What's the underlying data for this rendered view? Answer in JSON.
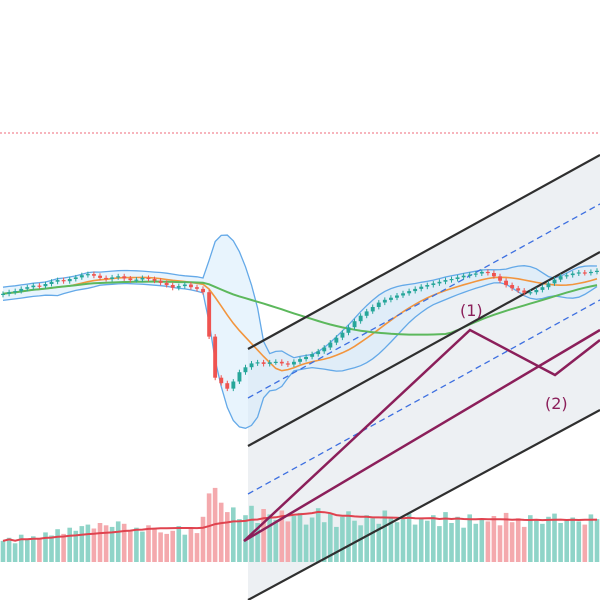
{
  "chart_data": {
    "type": "candlestick",
    "title": "",
    "xlabel": "",
    "ylabel": "",
    "ylim": [
      62,
      118
    ],
    "x": [
      0,
      1,
      2,
      3,
      4,
      5,
      6,
      7,
      8,
      9,
      10,
      11,
      12,
      13,
      14,
      15,
      16,
      17,
      18,
      19,
      20,
      21,
      22,
      23,
      24,
      25,
      26,
      27,
      28,
      29,
      30,
      31,
      32,
      33,
      34,
      35,
      36,
      37,
      38,
      39,
      40,
      41,
      42,
      43,
      44,
      45,
      46,
      47,
      48,
      49,
      50,
      51,
      52,
      53,
      54,
      55,
      56,
      57,
      58,
      59,
      60,
      61,
      62,
      63,
      64,
      65,
      66,
      67,
      68,
      69,
      70,
      71,
      72,
      73,
      74,
      75,
      76,
      77,
      78,
      79,
      80,
      81,
      82,
      83,
      84,
      85,
      86,
      87,
      88,
      89,
      90,
      91,
      92,
      93,
      94,
      95,
      96,
      97,
      98
    ],
    "series": [
      {
        "open": [
          88.1,
          88.3,
          88.6,
          88.8,
          89.2,
          89.5,
          89.8,
          89.7,
          90.1,
          90.5,
          90.8,
          90.6,
          91.0,
          91.3,
          91.7,
          91.9,
          91.6,
          91.2,
          91.0,
          91.3,
          91.5,
          91.1,
          90.8,
          90.9,
          91.2,
          91.0,
          90.7,
          90.3,
          89.9,
          89.4,
          89.7,
          90.0,
          89.5,
          89.2,
          88.6,
          80.5,
          73.0,
          72.0,
          71.0,
          72.3,
          74.0,
          74.9,
          75.6,
          75.8,
          75.5,
          75.8,
          75.9,
          75.6,
          75.4,
          75.9,
          76.4,
          76.8,
          77.3,
          77.8,
          78.5,
          79.4,
          80.3,
          81.2,
          82.2,
          83.3,
          84.3,
          85.1,
          85.9,
          86.7,
          87.2,
          87.6,
          88.0,
          88.4,
          88.8,
          89.2,
          89.6,
          89.9,
          90.2,
          90.5,
          90.8,
          91.0,
          91.3,
          91.6,
          91.8,
          92.0,
          92.3,
          92.1,
          91.5,
          90.7,
          89.9,
          89.3,
          88.9,
          88.5,
          88.6,
          89.0,
          89.5,
          90.2,
          90.9,
          91.5,
          91.7,
          92.0,
          92.2,
          92.1,
          92.3
        ]
      },
      {
        "close": [
          88.3,
          88.6,
          88.8,
          89.2,
          89.5,
          89.8,
          89.7,
          90.1,
          90.5,
          90.8,
          90.6,
          91.0,
          91.3,
          91.7,
          91.9,
          91.6,
          91.2,
          91.0,
          91.3,
          91.5,
          91.1,
          90.8,
          90.9,
          91.2,
          91.0,
          90.7,
          90.3,
          89.9,
          89.4,
          89.7,
          90.0,
          89.5,
          89.2,
          88.6,
          80.5,
          73.0,
          72.0,
          71.0,
          72.3,
          74.0,
          74.9,
          75.6,
          75.8,
          75.5,
          75.8,
          75.9,
          75.6,
          75.4,
          75.9,
          76.4,
          76.8,
          77.3,
          77.8,
          78.5,
          79.4,
          80.3,
          81.2,
          82.2,
          83.3,
          84.3,
          85.1,
          85.9,
          86.7,
          87.2,
          87.6,
          88.0,
          88.4,
          88.8,
          89.2,
          89.6,
          89.9,
          90.2,
          90.5,
          90.8,
          91.0,
          91.3,
          91.6,
          91.8,
          92.0,
          92.3,
          92.1,
          91.5,
          90.7,
          89.9,
          89.3,
          88.9,
          88.5,
          88.6,
          89.0,
          89.5,
          90.2,
          90.9,
          91.5,
          91.7,
          92.0,
          92.2,
          92.1,
          92.3,
          92.5
        ]
      },
      {
        "volume": [
          27,
          31,
          24,
          35,
          29,
          33,
          30,
          38,
          34,
          42,
          36,
          44,
          40,
          46,
          48,
          43,
          50,
          47,
          45,
          52,
          49,
          41,
          44,
          39,
          47,
          42,
          38,
          36,
          40,
          46,
          35,
          43,
          37,
          58,
          88,
          95,
          76,
          64,
          70,
          55,
          60,
          72,
          50,
          68,
          61,
          54,
          66,
          52,
          59,
          63,
          48,
          57,
          69,
          51,
          62,
          45,
          58,
          65,
          53,
          47,
          60,
          56,
          49,
          66,
          58,
          51,
          55,
          62,
          48,
          57,
          53,
          60,
          46,
          64,
          50,
          58,
          44,
          61,
          49,
          55,
          52,
          59,
          47,
          63,
          51,
          56,
          45,
          60,
          53,
          49,
          58,
          62,
          50,
          54,
          57,
          52,
          48,
          61,
          55
        ]
      }
    ],
    "annotations": [
      "(1)",
      "(2)"
    ]
  },
  "wave_labels": {
    "w1": "(1)",
    "w2": "(2)"
  },
  "colors": {
    "up": "#26a69a",
    "down": "#ef5350",
    "vol_up": "#8fd4c8",
    "vol_down": "#f4a9ad",
    "bb": "#64a9e8",
    "bb_fill": "#d6ebfb",
    "ma_short": "#f2953e",
    "ma_long": "#5cb85c",
    "vol_ma": "#e0434f",
    "channel": "#2f2f2f",
    "channel_fill": "#dfe3ea",
    "channel_mid": "#3d6fe0",
    "wave": "#8b1f5a",
    "ref_line": "#ef6a7a"
  }
}
